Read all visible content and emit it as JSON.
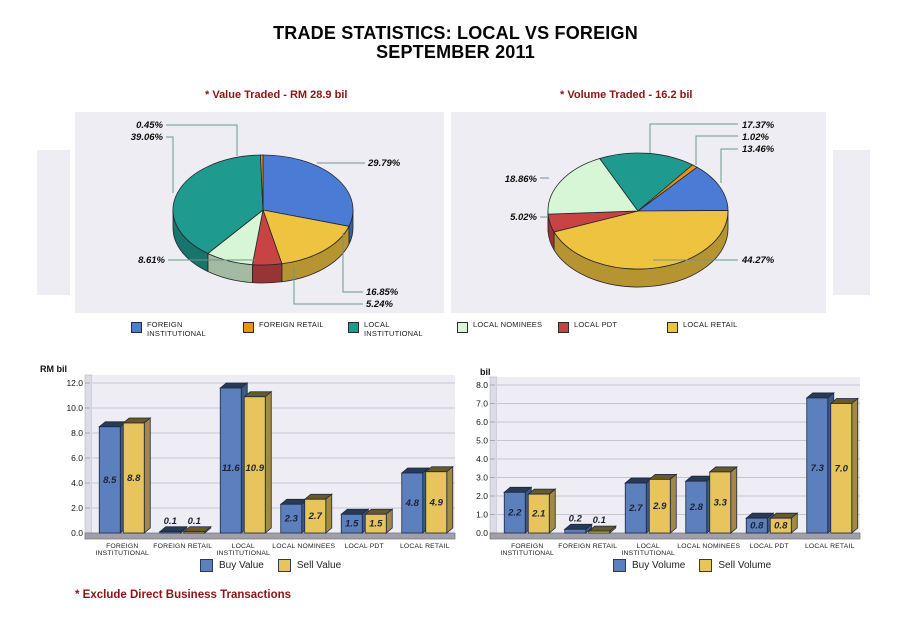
{
  "title": {
    "line1": "TRADE STATISTICS: LOCAL VS FOREIGN",
    "line2": "SEPTEMBER 2011"
  },
  "footnote": "* Exclude Direct Business Transactions",
  "colors": {
    "foreign_institutional": "#4a7cd6",
    "foreign_retail": "#ef920c",
    "local_institutional": "#1f9a8f",
    "local_nominees": "#d6f6d6",
    "local_pdt": "#c84444",
    "local_retail": "#eec340",
    "buy_bar": "#5c80bd",
    "sell_bar": "#e7c55c",
    "subtitle_red": "#8b1414"
  },
  "categories_legend": [
    {
      "label": "FOREIGN INSTITUTIONAL",
      "color": "#4a7cd6"
    },
    {
      "label": "FOREIGN RETAIL",
      "color": "#ef920c"
    },
    {
      "label": "LOCAL INSTITUTIONAL",
      "color": "#1f9a8f"
    },
    {
      "label": "LOCAL NOMINEES",
      "color": "#d6f6d6"
    },
    {
      "label": "LOCAL PDT",
      "color": "#c84444"
    },
    {
      "label": "LOCAL RETAIL",
      "color": "#eec340"
    }
  ],
  "chart_data": [
    {
      "type": "pie",
      "title": "* Value Traded - RM 28.9 bil",
      "start_angle_deg": 0,
      "slices": [
        {
          "label": "FOREIGN INSTITUTIONAL",
          "pct": 29.79,
          "pct_label": "29.79%",
          "color": "#4a7cd6"
        },
        {
          "label": "LOCAL RETAIL",
          "pct": 16.85,
          "pct_label": "16.85%",
          "color": "#eec340"
        },
        {
          "label": "LOCAL PDT",
          "pct": 5.24,
          "pct_label": "5.24%",
          "color": "#c84444"
        },
        {
          "label": "LOCAL NOMINEES",
          "pct": 8.61,
          "pct_label": "8.61%",
          "color": "#d6f6d6"
        },
        {
          "label": "LOCAL INSTITUTIONAL",
          "pct": 39.06,
          "pct_label": "39.06%",
          "color": "#1f9a8f"
        },
        {
          "label": "FOREIGN RETAIL",
          "pct": 0.45,
          "pct_label": "0.45%",
          "color": "#ef920c"
        }
      ]
    },
    {
      "type": "pie",
      "title": "* Volume Traded -  16.2 bil",
      "start_angle_deg": 41,
      "slices": [
        {
          "label": "FOREIGN INSTITUTIONAL",
          "pct": 13.46,
          "pct_label": "13.46%",
          "color": "#4a7cd6"
        },
        {
          "label": "LOCAL RETAIL",
          "pct": 44.27,
          "pct_label": "44.27%",
          "color": "#eec340"
        },
        {
          "label": "LOCAL PDT",
          "pct": 5.02,
          "pct_label": "5.02%",
          "color": "#c84444"
        },
        {
          "label": "LOCAL NOMINEES",
          "pct": 18.86,
          "pct_label": "18.86%",
          "color": "#d6f6d6"
        },
        {
          "label": "LOCAL INSTITUTIONAL",
          "pct": 17.37,
          "pct_label": "17.37%",
          "color": "#1f9a8f"
        },
        {
          "label": "FOREIGN RETAIL",
          "pct": 1.02,
          "pct_label": "1.02%",
          "color": "#ef920c"
        }
      ]
    },
    {
      "type": "bar",
      "unit": "RM bil",
      "ylim": [
        0,
        12
      ],
      "ytick_step": 2,
      "grid": true,
      "legend_position": "bottom",
      "categories": [
        [
          "FOREIGN",
          "INSTITUTIONAL"
        ],
        [
          "FOREIGN RETAIL"
        ],
        [
          "LOCAL",
          "INSTITUTIONAL"
        ],
        [
          "LOCAL NOMINEES"
        ],
        [
          "LOCAL PDT"
        ],
        [
          "LOCAL RETAIL"
        ]
      ],
      "series": [
        {
          "name": "Buy Value",
          "color": "#5c80bd",
          "values": [
            8.5,
            0.1,
            11.6,
            2.3,
            1.5,
            4.8
          ]
        },
        {
          "name": "Sell Value",
          "color": "#e7c55c",
          "values": [
            8.8,
            0.1,
            10.9,
            2.7,
            1.5,
            4.9
          ]
        }
      ]
    },
    {
      "type": "bar",
      "unit": "bil",
      "ylim": [
        0,
        8
      ],
      "ytick_step": 1,
      "grid": true,
      "legend_position": "bottom",
      "categories": [
        [
          "FOREIGN",
          "INSTITUTIONAL"
        ],
        [
          "FOREIGN RETAIL"
        ],
        [
          "LOCAL",
          "INSTITUTIONAL"
        ],
        [
          "LOCAL NOMINEES"
        ],
        [
          "LOCAL PDT"
        ],
        [
          "LOCAL RETAIL"
        ]
      ],
      "series": [
        {
          "name": "Buy Volume",
          "color": "#5c80bd",
          "values": [
            2.2,
            0.2,
            2.7,
            2.8,
            0.8,
            7.3
          ]
        },
        {
          "name": "Sell Volume",
          "color": "#e7c55c",
          "values": [
            2.1,
            0.1,
            2.9,
            3.3,
            0.8,
            7.0
          ]
        }
      ]
    }
  ]
}
